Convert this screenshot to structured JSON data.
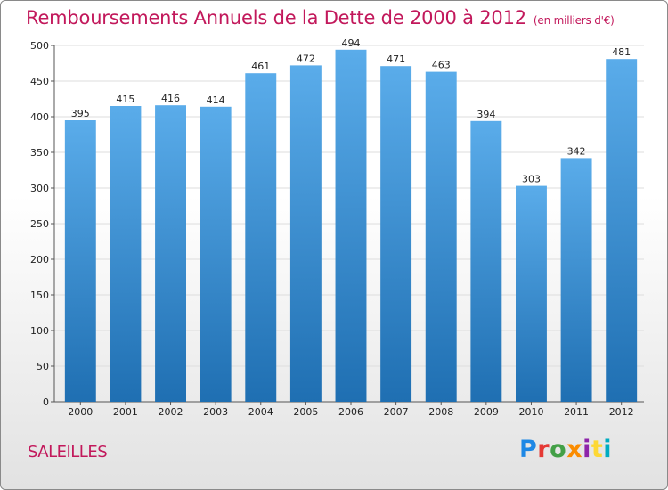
{
  "header": {
    "title": "Remboursements Annuels de la Dette de 2000 à 2012",
    "subtitle": "(en milliers d'€)"
  },
  "footer": {
    "place": "SALEILLES",
    "logo_text": "Proxiti"
  },
  "colors": {
    "title": "#c2185b",
    "bar_top": "#5aacea",
    "bar_bottom": "#1f6fb2",
    "grid": "#dddddd",
    "logo_letters": [
      "#1e88e5",
      "#e53935",
      "#43a047",
      "#fb8c00",
      "#8e24aa",
      "#fdd835",
      "#00acc1"
    ]
  },
  "chart_data": {
    "type": "bar",
    "categories": [
      "2000",
      "2001",
      "2002",
      "2003",
      "2004",
      "2005",
      "2006",
      "2007",
      "2008",
      "2009",
      "2010",
      "2011",
      "2012"
    ],
    "values": [
      395,
      415,
      416,
      414,
      461,
      472,
      494,
      471,
      463,
      394,
      303,
      342,
      481
    ],
    "title": "Remboursements Annuels de la Dette de 2000 à 2012",
    "subtitle": "(en milliers d'€)",
    "xlabel": "",
    "ylabel": "",
    "ylim": [
      0,
      500
    ],
    "yticks": [
      0,
      50,
      100,
      150,
      200,
      250,
      300,
      350,
      400,
      450,
      500
    ],
    "grid": true,
    "legend": "none"
  }
}
